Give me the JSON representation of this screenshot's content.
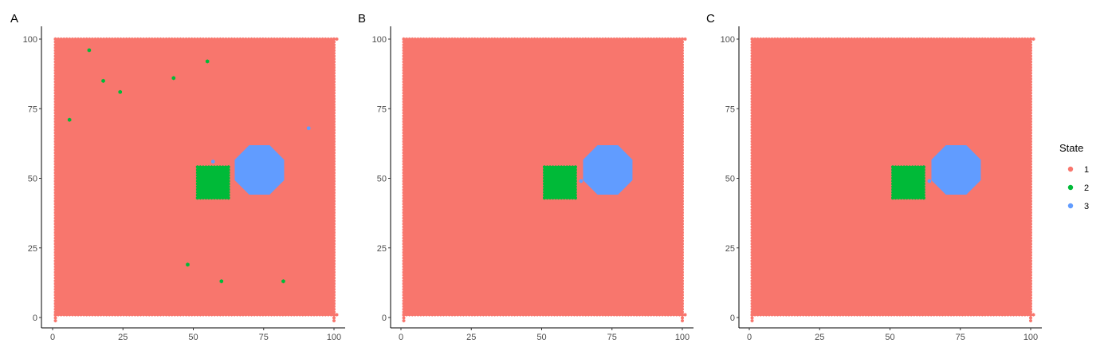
{
  "chart_data": [
    {
      "type": "scatter",
      "panel_label": "A",
      "title": "",
      "xlabel": "",
      "ylabel": "",
      "xlim": [
        0,
        100
      ],
      "ylim": [
        0,
        100
      ],
      "xticks": [
        "0",
        "25",
        "50",
        "75",
        "100"
      ],
      "yticks": [
        "0",
        "25",
        "50",
        "75",
        "100"
      ],
      "grid": false,
      "background": {
        "state": "1",
        "x": [
          1,
          100
        ],
        "y": [
          1,
          100
        ]
      },
      "regions": [
        {
          "state": "2",
          "shape": "square",
          "center": [
            57,
            48.5
          ],
          "half_width": 5.5
        },
        {
          "state": "3",
          "shape": "octagon",
          "center": [
            73.5,
            53
          ],
          "radius": 9.5
        }
      ],
      "points": [
        {
          "x": 13,
          "y": 96,
          "state": "2"
        },
        {
          "x": 55,
          "y": 92,
          "state": "2"
        },
        {
          "x": 18,
          "y": 85,
          "state": "2"
        },
        {
          "x": 43,
          "y": 86,
          "state": "2"
        },
        {
          "x": 24,
          "y": 81,
          "state": "2"
        },
        {
          "x": 6,
          "y": 71,
          "state": "2"
        },
        {
          "x": 48,
          "y": 19,
          "state": "2"
        },
        {
          "x": 60,
          "y": 13,
          "state": "2"
        },
        {
          "x": 82,
          "y": 13,
          "state": "2"
        },
        {
          "x": 91,
          "y": 68,
          "state": "3"
        },
        {
          "x": 57,
          "y": 56,
          "state": "3"
        }
      ]
    },
    {
      "type": "scatter",
      "panel_label": "B",
      "title": "",
      "xlabel": "",
      "ylabel": "",
      "xlim": [
        0,
        100
      ],
      "ylim": [
        0,
        100
      ],
      "xticks": [
        "0",
        "25",
        "50",
        "75",
        "100"
      ],
      "yticks": [
        "0",
        "25",
        "50",
        "75",
        "100"
      ],
      "grid": false,
      "background": {
        "state": "1",
        "x": [
          1,
          100
        ],
        "y": [
          1,
          100
        ]
      },
      "regions": [
        {
          "state": "2",
          "shape": "square",
          "center": [
            56.5,
            48.5
          ],
          "half_width": 5.5
        },
        {
          "state": "3",
          "shape": "octagon",
          "center": [
            73.5,
            53
          ],
          "radius": 9.5
        }
      ],
      "points": [
        {
          "x": 64,
          "y": 49,
          "state": "3"
        }
      ]
    },
    {
      "type": "scatter",
      "panel_label": "C",
      "title": "",
      "xlabel": "",
      "ylabel": "",
      "xlim": [
        0,
        100
      ],
      "ylim": [
        0,
        100
      ],
      "xticks": [
        "0",
        "25",
        "50",
        "75",
        "100"
      ],
      "yticks": [
        "0",
        "25",
        "50",
        "75",
        "100"
      ],
      "grid": false,
      "background": {
        "state": "1",
        "x": [
          1,
          100
        ],
        "y": [
          1,
          100
        ]
      },
      "regions": [
        {
          "state": "2",
          "shape": "square",
          "center": [
            56.5,
            48.5
          ],
          "half_width": 5.5
        },
        {
          "state": "3",
          "shape": "octagon",
          "center": [
            73.5,
            53
          ],
          "radius": 9.5
        }
      ],
      "points": [
        {
          "x": 64,
          "y": 49,
          "state": "3"
        }
      ]
    }
  ],
  "legend": {
    "title": "State",
    "placement": "right",
    "items": [
      {
        "label": "1",
        "color": "#F8766D"
      },
      {
        "label": "2",
        "color": "#00BA38"
      },
      {
        "label": "3",
        "color": "#619CFF"
      }
    ]
  },
  "colors": {
    "1": "#F8766D",
    "2": "#00BA38",
    "3": "#619CFF"
  }
}
